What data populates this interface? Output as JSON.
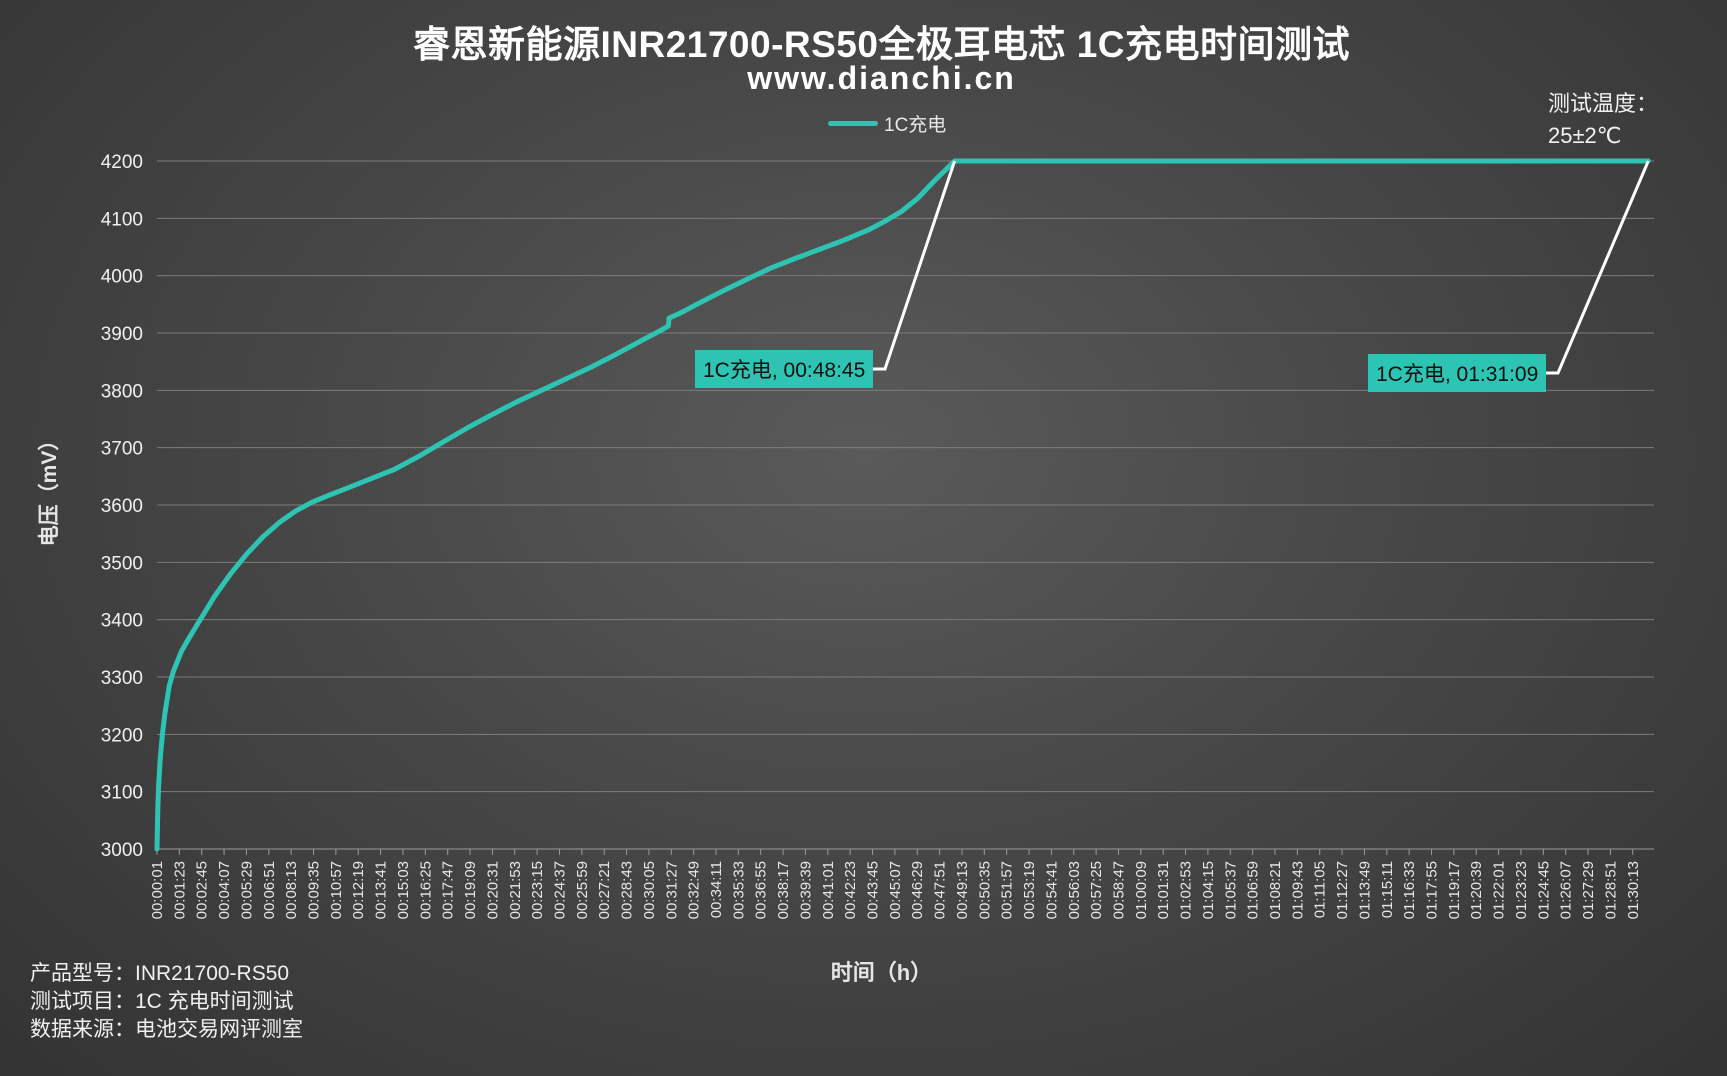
{
  "title": "睿恩新能源INR21700-RS50全极耳电芯 1C充电时间测试",
  "subtitle": "www.dianchi.cn",
  "temperature": {
    "label": "测试温度：",
    "value": "25±2℃"
  },
  "colors": {
    "series": "#2ec4b3",
    "leader": "#ffffff",
    "grid": "#7c7c7c"
  },
  "footer": {
    "model": "产品型号：INR21700-RS50",
    "item": "测试项目：1C 充电时间测试",
    "source": "数据来源：电池交易网评测室"
  },
  "chart_data": {
    "type": "line",
    "xlabel": "时间（h）",
    "ylabel": "电压（mV）",
    "ylim": [
      3000,
      4200
    ],
    "yticks": [
      3000,
      3100,
      3200,
      3300,
      3400,
      3500,
      3600,
      3700,
      3800,
      3900,
      4000,
      4100,
      4200
    ],
    "grid": true,
    "legend_position": "top-center",
    "x_tick_labels": [
      "00:00:01",
      "00:01:23",
      "00:02:45",
      "00:04:07",
      "00:05:29",
      "00:06:51",
      "00:08:13",
      "00:09:35",
      "00:10:57",
      "00:12:19",
      "00:13:41",
      "00:15:03",
      "00:16:25",
      "00:17:47",
      "00:19:09",
      "00:20:31",
      "00:21:53",
      "00:23:15",
      "00:24:37",
      "00:25:59",
      "00:27:21",
      "00:28:43",
      "00:30:05",
      "00:31:27",
      "00:32:49",
      "00:34:11",
      "00:35:33",
      "00:36:55",
      "00:38:17",
      "00:39:39",
      "00:41:01",
      "00:42:23",
      "00:43:45",
      "00:45:07",
      "00:46:29",
      "00:47:51",
      "00:49:13",
      "00:50:35",
      "00:51:57",
      "00:53:19",
      "00:54:41",
      "00:56:03",
      "00:57:25",
      "00:58:47",
      "01:00:09",
      "01:01:31",
      "01:02:53",
      "01:04:15",
      "01:05:37",
      "01:06:59",
      "01:08:21",
      "01:09:43",
      "01:11:05",
      "01:12:27",
      "01:13:49",
      "01:15:11",
      "01:16:33",
      "01:17:55",
      "01:19:17",
      "01:20:39",
      "01:22:01",
      "01:23:23",
      "01:24:45",
      "01:26:07",
      "01:27:29",
      "01:28:51",
      "01:30:13"
    ],
    "series": [
      {
        "name": "1C充电",
        "points": [
          [
            0.0,
            3000
          ],
          [
            0.05,
            3070
          ],
          [
            0.1,
            3110
          ],
          [
            0.2,
            3160
          ],
          [
            0.35,
            3205
          ],
          [
            0.5,
            3240
          ],
          [
            0.75,
            3285
          ],
          [
            1.0,
            3310
          ],
          [
            1.5,
            3345
          ],
          [
            2.0,
            3370
          ],
          [
            2.75,
            3405
          ],
          [
            3.5,
            3440
          ],
          [
            4.5,
            3480
          ],
          [
            5.5,
            3515
          ],
          [
            6.5,
            3545
          ],
          [
            7.5,
            3570
          ],
          [
            8.5,
            3590
          ],
          [
            9.5,
            3605
          ],
          [
            10.5,
            3617
          ],
          [
            11.5,
            3628
          ],
          [
            13.0,
            3645
          ],
          [
            14.5,
            3662
          ],
          [
            16.0,
            3685
          ],
          [
            17.5,
            3710
          ],
          [
            19.0,
            3735
          ],
          [
            20.5,
            3758
          ],
          [
            22.0,
            3780
          ],
          [
            23.5,
            3800
          ],
          [
            25.0,
            3820
          ],
          [
            26.5,
            3840
          ],
          [
            28.0,
            3862
          ],
          [
            29.5,
            3885
          ],
          [
            30.5,
            3900
          ],
          [
            31.0,
            3908
          ],
          [
            31.25,
            3912
          ],
          [
            31.3,
            3926
          ],
          [
            32.0,
            3935
          ],
          [
            33.0,
            3950
          ],
          [
            34.5,
            3972
          ],
          [
            36.0,
            3993
          ],
          [
            37.5,
            4013
          ],
          [
            39.0,
            4030
          ],
          [
            40.5,
            4046
          ],
          [
            42.0,
            4062
          ],
          [
            43.5,
            4080
          ],
          [
            44.5,
            4095
          ],
          [
            45.5,
            4112
          ],
          [
            46.5,
            4135
          ],
          [
            47.5,
            4165
          ],
          [
            48.75,
            4200
          ],
          [
            91.15,
            4200
          ]
        ]
      }
    ],
    "annotations": [
      {
        "label": "1C充电, 00:48:45",
        "x": 48.75,
        "y": 4200
      },
      {
        "label": "1C充电, 01:31:09",
        "x": 91.15,
        "y": 4200
      }
    ]
  }
}
